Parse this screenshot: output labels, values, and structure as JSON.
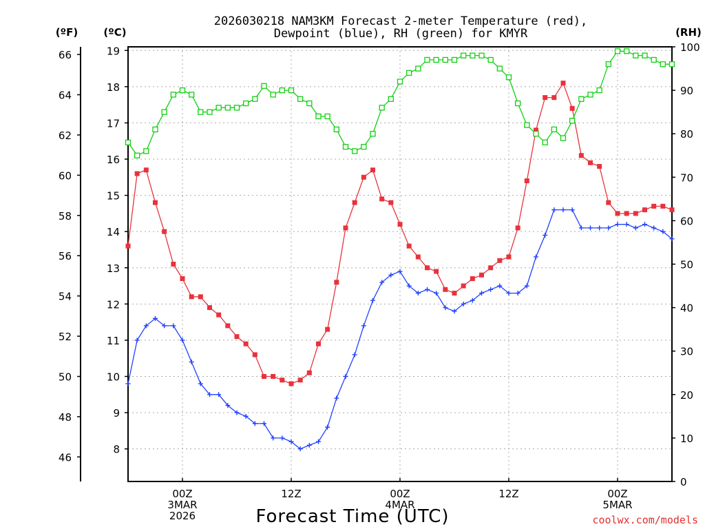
{
  "chart_data": {
    "type": "line",
    "title_line1": "2026030218 NAM3KM Forecast 2-meter Temperature (red),",
    "title_line2": "Dewpoint (blue), RH (green) for KMYR",
    "xlabel": "Forecast Time (UTC)",
    "credit": "coolwx.com/models",
    "units": {
      "fahrenheit": "(ºF)",
      "celsius": "(ºC)",
      "rh": "(RH)"
    },
    "grid": true,
    "x_range_hours": [
      0,
      60
    ],
    "x_ticks": [
      {
        "hour": 6,
        "lines": [
          "00Z",
          "3MAR",
          "2026"
        ]
      },
      {
        "hour": 18,
        "lines": [
          "12Z"
        ]
      },
      {
        "hour": 30,
        "lines": [
          "00Z",
          "4MAR"
        ]
      },
      {
        "hour": 42,
        "lines": [
          "12Z"
        ]
      },
      {
        "hour": 54,
        "lines": [
          "00Z",
          "5MAR"
        ]
      }
    ],
    "celsius_axis": {
      "range": [
        7.1,
        19.1
      ],
      "ticks": [
        8,
        9,
        10,
        11,
        12,
        13,
        14,
        15,
        16,
        17,
        18,
        19
      ]
    },
    "fahrenheit_ticks": [
      46,
      48,
      50,
      52,
      54,
      56,
      58,
      60,
      62,
      64,
      66
    ],
    "rh_axis": {
      "range": [
        0,
        100
      ],
      "ticks": [
        0,
        10,
        20,
        30,
        40,
        50,
        60,
        70,
        80,
        90,
        100
      ]
    },
    "series": [
      {
        "name": "Temperature",
        "unit": "C",
        "color": "#e8323c",
        "marker": "filled-square",
        "x": [
          0,
          1,
          2,
          3,
          4,
          5,
          6,
          7,
          8,
          9,
          10,
          11,
          12,
          13,
          14,
          15,
          16,
          17,
          18,
          19,
          20,
          21,
          22,
          23,
          24,
          25,
          26,
          27,
          28,
          29,
          30,
          31,
          32,
          33,
          34,
          35,
          36,
          37,
          38,
          39,
          40,
          41,
          42,
          43,
          44,
          45,
          46,
          47,
          48,
          49,
          50,
          51,
          52,
          53,
          54,
          55,
          56,
          57,
          58,
          59,
          60
        ],
        "values": [
          13.6,
          15.6,
          15.7,
          14.8,
          14.0,
          13.1,
          12.7,
          12.2,
          12.2,
          11.9,
          11.7,
          11.4,
          11.1,
          10.9,
          10.6,
          10.0,
          10.0,
          9.9,
          9.8,
          9.9,
          10.1,
          10.9,
          11.3,
          12.6,
          14.1,
          14.8,
          15.5,
          15.7,
          14.9,
          14.8,
          14.2,
          13.6,
          13.3,
          13.0,
          12.9,
          12.4,
          12.3,
          12.5,
          12.7,
          12.8,
          13.0,
          13.2,
          13.3,
          14.1,
          15.4,
          16.8,
          17.7,
          17.7,
          18.1,
          17.4,
          16.1,
          15.9,
          15.8,
          14.8,
          14.5,
          14.5,
          14.5,
          14.6,
          14.7,
          14.7,
          14.6
        ]
      },
      {
        "name": "Dewpoint",
        "unit": "C",
        "color": "#2040ff",
        "marker": "plus",
        "x": [
          0,
          1,
          2,
          3,
          4,
          5,
          6,
          7,
          8,
          9,
          10,
          11,
          12,
          13,
          14,
          15,
          16,
          17,
          18,
          19,
          20,
          21,
          22,
          23,
          24,
          25,
          26,
          27,
          28,
          29,
          30,
          31,
          32,
          33,
          34,
          35,
          36,
          37,
          38,
          39,
          40,
          41,
          42,
          43,
          44,
          45,
          46,
          47,
          48,
          49,
          50,
          51,
          52,
          53,
          54,
          55,
          56,
          57,
          58,
          59,
          60
        ],
        "values": [
          9.8,
          11.0,
          11.4,
          11.6,
          11.4,
          11.4,
          11.0,
          10.4,
          9.8,
          9.5,
          9.5,
          9.2,
          9.0,
          8.9,
          8.7,
          8.7,
          8.3,
          8.3,
          8.2,
          8.0,
          8.1,
          8.2,
          8.6,
          9.4,
          10.0,
          10.6,
          11.4,
          12.1,
          12.6,
          12.8,
          12.9,
          12.5,
          12.3,
          12.4,
          12.3,
          11.9,
          11.8,
          12.0,
          12.1,
          12.3,
          12.4,
          12.5,
          12.3,
          12.3,
          12.5,
          13.3,
          13.9,
          14.6,
          14.6,
          14.6,
          14.1,
          14.1,
          14.1,
          14.1,
          14.2,
          14.2,
          14.1,
          14.2,
          14.1,
          14.0,
          13.8
        ]
      },
      {
        "name": "RH",
        "unit": "%",
        "color": "#10d010",
        "marker": "open-square",
        "x": [
          0,
          1,
          2,
          3,
          4,
          5,
          6,
          7,
          8,
          9,
          10,
          11,
          12,
          13,
          14,
          15,
          16,
          17,
          18,
          19,
          20,
          21,
          22,
          23,
          24,
          25,
          26,
          27,
          28,
          29,
          30,
          31,
          32,
          33,
          34,
          35,
          36,
          37,
          38,
          39,
          40,
          41,
          42,
          43,
          44,
          45,
          46,
          47,
          48,
          49,
          50,
          51,
          52,
          53,
          54,
          55,
          56,
          57,
          58,
          59,
          60
        ],
        "values": [
          78,
          75,
          76,
          81,
          85,
          89,
          90,
          89,
          85,
          85,
          86,
          86,
          86,
          87,
          88,
          91,
          89,
          90,
          90,
          88,
          87,
          84,
          84,
          81,
          77,
          76,
          77,
          80,
          86,
          88,
          92,
          94,
          95,
          97,
          97,
          97,
          97,
          98,
          98,
          98,
          97,
          95,
          93,
          87,
          82,
          80,
          78,
          81,
          79,
          83,
          88,
          89,
          90,
          96,
          99,
          99,
          98,
          98,
          97,
          96,
          96
        ]
      }
    ]
  }
}
